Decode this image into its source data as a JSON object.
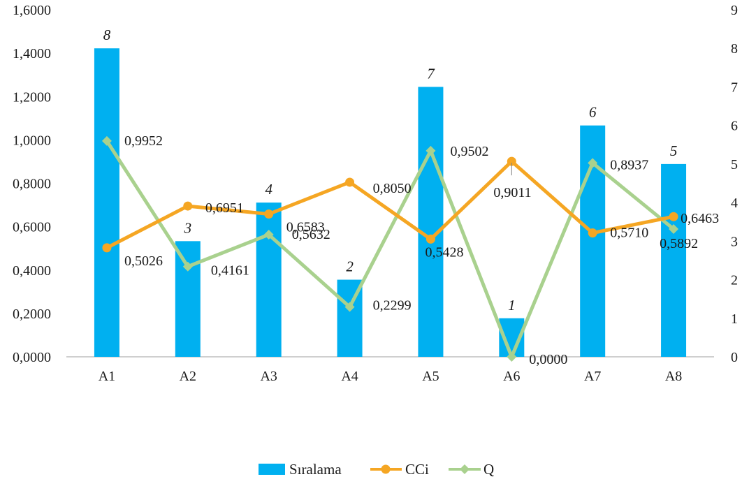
{
  "chart_data": {
    "type": "bar",
    "categories": [
      "A1",
      "A2",
      "A3",
      "A4",
      "A5",
      "A6",
      "A7",
      "A8"
    ],
    "left_axis": {
      "ylim": [
        0,
        1.6
      ],
      "ticks": [
        "0,0000",
        "0,2000",
        "0,4000",
        "0,6000",
        "0,8000",
        "1,0000",
        "1,2000",
        "1,4000",
        "1,6000"
      ]
    },
    "right_axis": {
      "ylim": [
        0,
        9
      ],
      "ticks": [
        "0",
        "1",
        "2",
        "3",
        "4",
        "5",
        "6",
        "7",
        "8",
        "9"
      ]
    },
    "series": [
      {
        "name": "Sıralama",
        "type": "bar",
        "axis": "right",
        "color": "#00B0F0",
        "values": [
          8,
          3,
          4,
          2,
          7,
          1,
          6,
          5
        ],
        "labels": [
          "8",
          "3",
          "4",
          "2",
          "7",
          "1",
          "6",
          "5"
        ]
      },
      {
        "name": "CCi",
        "type": "line",
        "axis": "left",
        "color": "#F5A623",
        "values": [
          0.5026,
          0.6951,
          0.6583,
          0.805,
          0.5428,
          0.9011,
          0.571,
          0.6463
        ],
        "labels": [
          "0,5026",
          "0,6951",
          "0,6583",
          "0,8050",
          "0,5428",
          "0,9011",
          "0,5710",
          "0,6463"
        ]
      },
      {
        "name": "Q",
        "type": "line",
        "axis": "left",
        "color": "#A9D18E",
        "values": [
          0.9952,
          0.4161,
          0.5632,
          0.2299,
          0.9502,
          0.0,
          0.8937,
          0.5892
        ],
        "labels": [
          "0,9952",
          "0,4161",
          "0,5632",
          "0,2299",
          "0,9502",
          "0,0000",
          "0,8937",
          "0,5892"
        ]
      }
    ],
    "grid": false,
    "legend": "bottom"
  }
}
